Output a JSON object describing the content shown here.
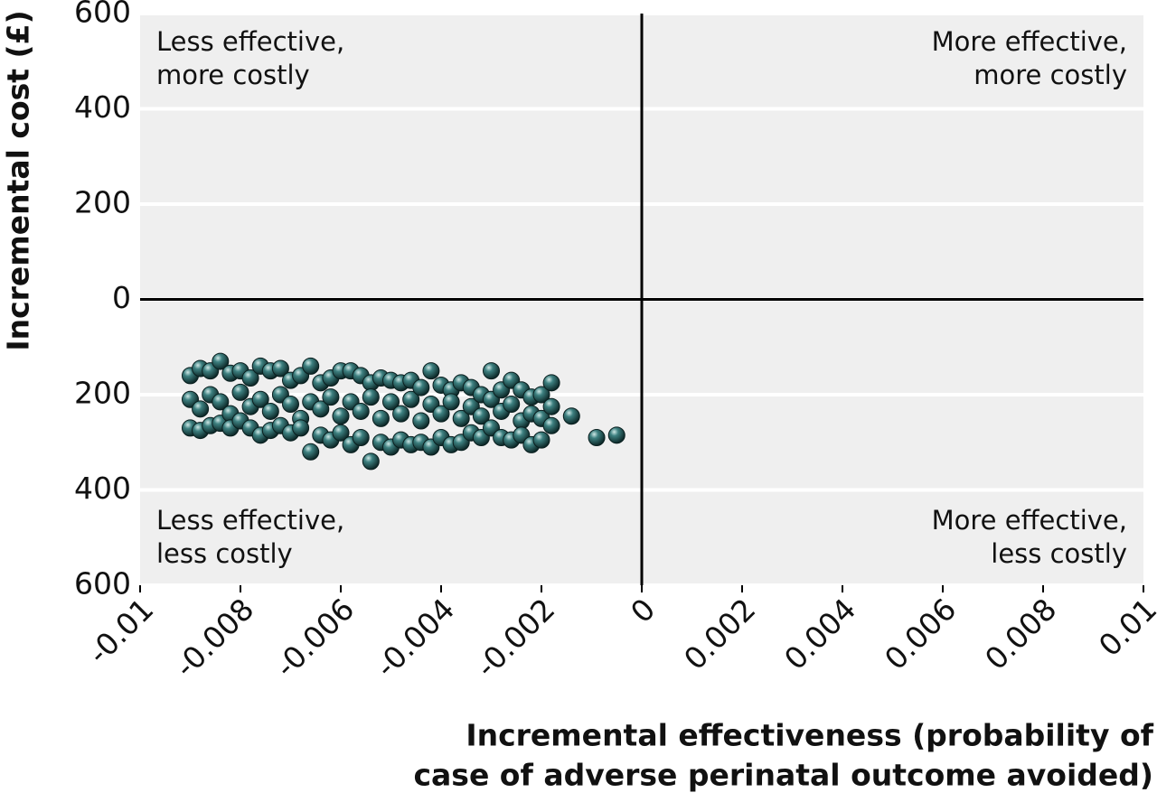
{
  "chart_data": {
    "type": "scatter",
    "y_label": "Incremental cost (£)",
    "x_label": [
      "Incremental effectiveness (probability of",
      "case of adverse perinatal outcome avoided)"
    ],
    "annotations": [
      {
        "corner": "top-left",
        "lines": [
          "Less effective,",
          "more costly"
        ]
      },
      {
        "corner": "top-right",
        "lines": [
          "More effective,",
          "more costly"
        ]
      },
      {
        "corner": "bottom-left",
        "lines": [
          "Less effective,",
          "less costly"
        ]
      },
      {
        "corner": "bottom-right",
        "lines": [
          "More effective,",
          "less costly"
        ]
      }
    ],
    "xlim": [
      -0.01,
      0.01
    ],
    "xticks": [
      -0.01,
      -0.008,
      -0.006,
      -0.004,
      -0.002,
      0,
      0.002,
      0.004,
      0.006,
      0.008,
      0.01
    ],
    "ylim": [
      -600,
      600
    ],
    "yticks": [
      600,
      400,
      200,
      0,
      {
        "value": -200,
        "label": "200"
      },
      {
        "value": -400,
        "label": "400"
      },
      {
        "value": -600,
        "label": "600"
      }
    ],
    "grid": true,
    "color": "#2e6b6b",
    "x": [
      -0.009,
      -0.009,
      -0.009,
      -0.0088,
      -0.0088,
      -0.0088,
      -0.0086,
      -0.0086,
      -0.0086,
      -0.0084,
      -0.0084,
      -0.0084,
      -0.0082,
      -0.0082,
      -0.0082,
      -0.008,
      -0.008,
      -0.008,
      -0.0078,
      -0.0078,
      -0.0078,
      -0.0076,
      -0.0076,
      -0.0076,
      -0.0074,
      -0.0074,
      -0.0074,
      -0.0072,
      -0.0072,
      -0.0072,
      -0.007,
      -0.007,
      -0.007,
      -0.0068,
      -0.0068,
      -0.0068,
      -0.0066,
      -0.0066,
      -0.0066,
      -0.0064,
      -0.0064,
      -0.0064,
      -0.0062,
      -0.0062,
      -0.0062,
      -0.006,
      -0.006,
      -0.006,
      -0.0058,
      -0.0058,
      -0.0058,
      -0.0056,
      -0.0056,
      -0.0056,
      -0.0054,
      -0.0054,
      -0.0054,
      -0.0052,
      -0.0052,
      -0.0052,
      -0.005,
      -0.005,
      -0.005,
      -0.0048,
      -0.0048,
      -0.0048,
      -0.0046,
      -0.0046,
      -0.0046,
      -0.0044,
      -0.0044,
      -0.0044,
      -0.0042,
      -0.0042,
      -0.0042,
      -0.004,
      -0.004,
      -0.004,
      -0.0038,
      -0.0038,
      -0.0038,
      -0.0036,
      -0.0036,
      -0.0036,
      -0.0034,
      -0.0034,
      -0.0034,
      -0.0032,
      -0.0032,
      -0.0032,
      -0.003,
      -0.003,
      -0.003,
      -0.0028,
      -0.0028,
      -0.0028,
      -0.0026,
      -0.0026,
      -0.0026,
      -0.0024,
      -0.0024,
      -0.0024,
      -0.0022,
      -0.0022,
      -0.0022,
      -0.002,
      -0.002,
      -0.002,
      -0.0018,
      -0.0018,
      -0.0018,
      -0.0014,
      -0.0009,
      -0.0005
    ],
    "values": [
      -160,
      -210,
      -270,
      -145,
      -230,
      -275,
      -150,
      -200,
      -265,
      -130,
      -215,
      -260,
      -155,
      -240,
      -270,
      -150,
      -195,
      -255,
      -165,
      -225,
      -270,
      -140,
      -210,
      -285,
      -150,
      -235,
      -275,
      -145,
      -200,
      -265,
      -170,
      -220,
      -280,
      -160,
      -250,
      -270,
      -140,
      -215,
      -320,
      -175,
      -230,
      -285,
      -165,
      -205,
      -295,
      -150,
      -245,
      -280,
      -150,
      -215,
      -305,
      -160,
      -235,
      -290,
      -175,
      -205,
      -340,
      -165,
      -250,
      -300,
      -170,
      -215,
      -310,
      -175,
      -240,
      -295,
      -170,
      -210,
      -305,
      -185,
      -255,
      -300,
      -150,
      -220,
      -310,
      -180,
      -240,
      -290,
      -190,
      -215,
      -305,
      -175,
      -250,
      -300,
      -185,
      -225,
      -280,
      -200,
      -245,
      -290,
      -150,
      -210,
      -270,
      -190,
      -235,
      -290,
      -170,
      -220,
      -295,
      -190,
      -255,
      -285,
      -205,
      -240,
      -305,
      -200,
      -250,
      -295,
      -175,
      -225,
      -265,
      -245,
      -290,
      -285
    ]
  }
}
